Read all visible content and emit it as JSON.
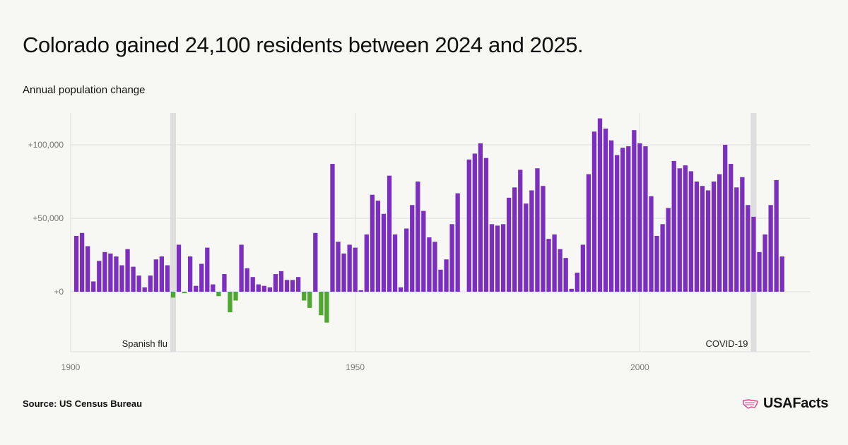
{
  "title": "Colorado gained 24,100 residents between 2024 and 2025.",
  "subtitle": "Annual population change",
  "source": "Source: US Census Bureau",
  "logo_text": "USAFacts",
  "colors": {
    "positive": "#7b2fbf",
    "negative": "#4ea72e",
    "shade": "#dedede",
    "grid": "#dcdcdc",
    "logo": "#e0408c"
  },
  "chart_data": {
    "type": "bar",
    "title": "Colorado gained 24,100 residents between 2024 and 2025.",
    "ylabel": "Annual population change",
    "xlim": [
      1900,
      2030
    ],
    "ylim": [
      -40000,
      120000
    ],
    "x_ticks": [
      1900,
      1950,
      2000
    ],
    "x_tick_labels": [
      "1900",
      "1950",
      "2000"
    ],
    "y_ticks": [
      0,
      50000,
      100000
    ],
    "y_tick_labels": [
      "+0",
      "+50,000",
      "+100,000"
    ],
    "grid": true,
    "shaded_years": [
      1918,
      2020
    ],
    "annotations": [
      {
        "text": "Spanish flu",
        "year": 1918
      },
      {
        "text": "COVID-19",
        "year": 2020
      }
    ],
    "x": [
      1901,
      1902,
      1903,
      1904,
      1905,
      1906,
      1907,
      1908,
      1909,
      1910,
      1911,
      1912,
      1913,
      1914,
      1915,
      1916,
      1917,
      1918,
      1919,
      1920,
      1921,
      1922,
      1923,
      1924,
      1925,
      1926,
      1927,
      1928,
      1929,
      1930,
      1931,
      1932,
      1933,
      1934,
      1935,
      1936,
      1937,
      1938,
      1939,
      1940,
      1941,
      1942,
      1943,
      1944,
      1945,
      1946,
      1947,
      1948,
      1949,
      1950,
      1951,
      1952,
      1953,
      1954,
      1955,
      1956,
      1957,
      1958,
      1959,
      1960,
      1961,
      1962,
      1963,
      1964,
      1965,
      1966,
      1967,
      1968,
      1969,
      1970,
      1971,
      1972,
      1973,
      1974,
      1975,
      1976,
      1977,
      1978,
      1979,
      1980,
      1981,
      1982,
      1983,
      1984,
      1985,
      1986,
      1987,
      1988,
      1989,
      1990,
      1991,
      1992,
      1993,
      1994,
      1995,
      1996,
      1997,
      1998,
      1999,
      2000,
      2001,
      2002,
      2003,
      2004,
      2005,
      2006,
      2007,
      2008,
      2009,
      2010,
      2011,
      2012,
      2013,
      2014,
      2015,
      2016,
      2017,
      2018,
      2019,
      2020,
      2021,
      2022,
      2023,
      2024,
      2025
    ],
    "values": [
      38000,
      40000,
      31000,
      7000,
      21000,
      27000,
      26000,
      24000,
      18000,
      29000,
      17000,
      11000,
      3000,
      11000,
      22000,
      24000,
      18000,
      -4000,
      32000,
      -1000,
      24000,
      4000,
      19000,
      30000,
      5000,
      -3000,
      12000,
      -14000,
      -6000,
      32000,
      16000,
      10000,
      5000,
      4000,
      3000,
      12000,
      14000,
      8000,
      8000,
      10000,
      -6000,
      -11000,
      40000,
      -16000,
      -21000,
      87000,
      34000,
      26000,
      32000,
      30000,
      1000,
      39000,
      66000,
      62000,
      53000,
      79000,
      39000,
      3000,
      43000,
      59000,
      75000,
      55000,
      37000,
      34000,
      15000,
      22000,
      46000,
      67000,
      0,
      90000,
      94000,
      101000,
      91000,
      46000,
      45000,
      46000,
      64000,
      71000,
      83000,
      60000,
      69000,
      84000,
      72000,
      36000,
      39000,
      29000,
      23000,
      2000,
      13000,
      32000,
      80000,
      109000,
      118000,
      111000,
      103000,
      93000,
      98000,
      99000,
      110000,
      101000,
      99000,
      65000,
      38000,
      46000,
      57000,
      89000,
      84000,
      86000,
      82000,
      75000,
      72000,
      69000,
      75000,
      80000,
      100000,
      87000,
      71000,
      78000,
      59000,
      51000,
      27000,
      39000,
      59000,
      76000,
      24000
    ]
  }
}
